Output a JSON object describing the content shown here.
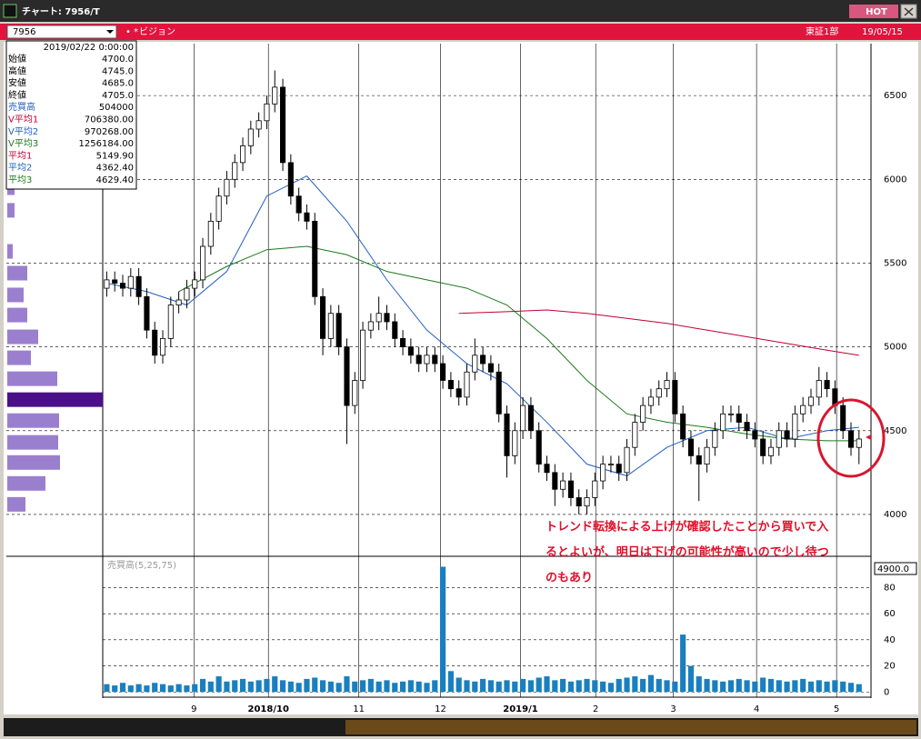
{
  "window": {
    "title": "チャート: 7956/T",
    "hot": "HOT",
    "code": "7956",
    "name": "ビジョン",
    "market": "東証1部",
    "date": "19/05/15"
  },
  "info_panel": {
    "timestamp": "2019/02/22 0:00:00",
    "rows": [
      {
        "label": "始値",
        "value": "4700.0",
        "color": "#000000"
      },
      {
        "label": "高値",
        "value": "4745.0",
        "color": "#000000"
      },
      {
        "label": "安値",
        "value": "4685.0",
        "color": "#000000"
      },
      {
        "label": "終値",
        "value": "4705.0",
        "color": "#000000"
      },
      {
        "label": "売買高",
        "value": "504000",
        "color": "#1f5fbf"
      },
      {
        "label": "V平均1",
        "value": "706380.00",
        "color": "#c00030"
      },
      {
        "label": "V平均2",
        "value": "970268.00",
        "color": "#1f5fbf"
      },
      {
        "label": "V平均3",
        "value": "1256184.00",
        "color": "#1a7a1a"
      },
      {
        "label": "平均1",
        "value": "5149.90",
        "color": "#c00030"
      },
      {
        "label": "平均2",
        "value": "4362.40",
        "color": "#1f5fbf"
      },
      {
        "label": "平均3",
        "value": "4629.40",
        "color": "#1a7a1a"
      }
    ]
  },
  "annotation": [
    "トレンド転換による上げが確認したことから買いで入",
    "るとよいが、明日は下げの可能性が高いので少し待つ",
    "のもあり"
  ],
  "chart_data": {
    "type": "candlestick",
    "xlim": [
      0,
      96
    ],
    "ylim": [
      3750,
      6810
    ],
    "yticks": [
      4000,
      4500,
      5000,
      5500,
      6000,
      6500
    ],
    "xticks": [
      {
        "value": 11.4,
        "label": "9"
      },
      {
        "value": 20.7,
        "label": "2018/10"
      },
      {
        "value": 32,
        "label": "11"
      },
      {
        "value": 42.2,
        "label": "12"
      },
      {
        "value": 52.2,
        "label": "2019/1"
      },
      {
        "value": 61.6,
        "label": "2"
      },
      {
        "value": 71.3,
        "label": "3"
      },
      {
        "value": 81.7,
        "label": "4"
      },
      {
        "value": 91.7,
        "label": "5"
      }
    ],
    "candles": [
      [
        5350,
        5450,
        5300,
        5400
      ],
      [
        5400,
        5450,
        5330,
        5380
      ],
      [
        5380,
        5430,
        5300,
        5350
      ],
      [
        5350,
        5470,
        5300,
        5420
      ],
      [
        5420,
        5470,
        5250,
        5300
      ],
      [
        5300,
        5350,
        5050,
        5100
      ],
      [
        5100,
        5150,
        4900,
        4950
      ],
      [
        4950,
        5100,
        4900,
        5050
      ],
      [
        5050,
        5300,
        5000,
        5250
      ],
      [
        5250,
        5330,
        5200,
        5280
      ],
      [
        5280,
        5400,
        5230,
        5350
      ],
      [
        5350,
        5450,
        5300,
        5400
      ],
      [
        5400,
        5650,
        5350,
        5600
      ],
      [
        5600,
        5800,
        5550,
        5750
      ],
      [
        5750,
        5950,
        5700,
        5900
      ],
      [
        5900,
        6050,
        5850,
        6000
      ],
      [
        6000,
        6150,
        5950,
        6100
      ],
      [
        6100,
        6250,
        6050,
        6200
      ],
      [
        6200,
        6350,
        6150,
        6300
      ],
      [
        6300,
        6400,
        6250,
        6350
      ],
      [
        6350,
        6500,
        6300,
        6450
      ],
      [
        6450,
        6650,
        6400,
        6550
      ],
      [
        6550,
        6600,
        6050,
        6100
      ],
      [
        6100,
        6150,
        5850,
        5900
      ],
      [
        5900,
        5950,
        5750,
        5800
      ],
      [
        5800,
        5850,
        5700,
        5750
      ],
      [
        5750,
        5800,
        5250,
        5300
      ],
      [
        5300,
        5350,
        4950,
        5050
      ],
      [
        5050,
        5250,
        5000,
        5200
      ],
      [
        5200,
        5250,
        4950,
        5000
      ],
      [
        5000,
        5050,
        4420,
        4650
      ],
      [
        4650,
        4850,
        4600,
        4800
      ],
      [
        4800,
        5150,
        4750,
        5100
      ],
      [
        5100,
        5200,
        5050,
        5150
      ],
      [
        5150,
        5300,
        5100,
        5200
      ],
      [
        5200,
        5250,
        5100,
        5150
      ],
      [
        5150,
        5200,
        5000,
        5050
      ],
      [
        5050,
        5100,
        4950,
        5000
      ],
      [
        5000,
        5050,
        4900,
        4950
      ],
      [
        4950,
        5000,
        4850,
        4900
      ],
      [
        4900,
        5000,
        4850,
        4950
      ],
      [
        4950,
        5000,
        4850,
        4900
      ],
      [
        4900,
        4950,
        4750,
        4800
      ],
      [
        4800,
        4850,
        4700,
        4750
      ],
      [
        4750,
        4800,
        4650,
        4700
      ],
      [
        4700,
        4900,
        4650,
        4850
      ],
      [
        4850,
        5050,
        4800,
        4950
      ],
      [
        4950,
        5000,
        4850,
        4900
      ],
      [
        4900,
        4950,
        4800,
        4850
      ],
      [
        4850,
        4900,
        4550,
        4600
      ],
      [
        4600,
        4650,
        4220,
        4350
      ],
      [
        4350,
        4550,
        4300,
        4500
      ],
      [
        4500,
        4700,
        4450,
        4650
      ],
      [
        4650,
        4700,
        4450,
        4500
      ],
      [
        4500,
        4550,
        4250,
        4300
      ],
      [
        4300,
        4350,
        4200,
        4250
      ],
      [
        4250,
        4300,
        4050,
        4150
      ],
      [
        4150,
        4250,
        4100,
        4200
      ],
      [
        4200,
        4250,
        4050,
        4100
      ],
      [
        4100,
        4150,
        4000,
        4050
      ],
      [
        4050,
        4150,
        4000,
        4100
      ],
      [
        4100,
        4250,
        4050,
        4200
      ],
      [
        4200,
        4350,
        4150,
        4300
      ],
      [
        4300,
        4350,
        4250,
        4300
      ],
      [
        4300,
        4350,
        4200,
        4250
      ],
      [
        4250,
        4450,
        4200,
        4400
      ],
      [
        4400,
        4600,
        4350,
        4550
      ],
      [
        4550,
        4700,
        4500,
        4650
      ],
      [
        4650,
        4750,
        4600,
        4700
      ],
      [
        4700,
        4800,
        4650,
        4750
      ],
      [
        4750,
        4850,
        4700,
        4800
      ],
      [
        4800,
        4850,
        4550,
        4600
      ],
      [
        4600,
        4650,
        4400,
        4450
      ],
      [
        4450,
        4500,
        4300,
        4350
      ],
      [
        4350,
        4400,
        4080,
        4300
      ],
      [
        4300,
        4450,
        4250,
        4400
      ],
      [
        4400,
        4550,
        4350,
        4500
      ],
      [
        4500,
        4650,
        4450,
        4600
      ],
      [
        4600,
        4650,
        4550,
        4600
      ],
      [
        4600,
        4650,
        4500,
        4550
      ],
      [
        4550,
        4600,
        4450,
        4500
      ],
      [
        4500,
        4550,
        4400,
        4450
      ],
      [
        4450,
        4500,
        4300,
        4350
      ],
      [
        4350,
        4450,
        4300,
        4400
      ],
      [
        4400,
        4550,
        4350,
        4500
      ],
      [
        4500,
        4550,
        4400,
        4450
      ],
      [
        4450,
        4650,
        4400,
        4600
      ],
      [
        4600,
        4700,
        4550,
        4650
      ],
      [
        4650,
        4750,
        4600,
        4700
      ],
      [
        4700,
        4880,
        4650,
        4800
      ],
      [
        4800,
        4850,
        4700,
        4750
      ],
      [
        4750,
        4800,
        4600,
        4650
      ],
      [
        4650,
        4700,
        4450,
        4500
      ],
      [
        4500,
        4550,
        4350,
        4400
      ],
      [
        4400,
        4500,
        4300,
        4450
      ]
    ],
    "averages": [
      {
        "color": "#1f5fbf",
        "x": [
          0,
          5,
          10,
          15,
          20,
          25,
          30,
          35,
          40,
          45,
          50,
          55,
          60,
          65,
          70,
          75,
          80,
          85,
          90,
          94
        ],
        "values": [
          5380,
          5330,
          5250,
          5450,
          5900,
          6020,
          5750,
          5400,
          5100,
          4900,
          4780,
          4550,
          4300,
          4230,
          4400,
          4500,
          4520,
          4450,
          4500,
          4520
        ]
      },
      {
        "color": "#1a7a1a",
        "x": [
          9,
          15,
          20,
          25,
          30,
          35,
          40,
          45,
          50,
          55,
          60,
          65,
          70,
          75,
          80,
          85,
          90,
          94
        ],
        "values": [
          5330,
          5480,
          5580,
          5600,
          5550,
          5450,
          5400,
          5350,
          5250,
          5050,
          4800,
          4600,
          4550,
          4520,
          4480,
          4450,
          4440,
          4440
        ]
      },
      {
        "color": "#c00030",
        "x": [
          44,
          50,
          55,
          60,
          65,
          70,
          75,
          80,
          85,
          90,
          94
        ],
        "values": [
          5200,
          5210,
          5220,
          5200,
          5170,
          5140,
          5100,
          5060,
          5020,
          4980,
          4950
        ]
      }
    ],
    "volume": {
      "label": "売買高(5,25,75)",
      "readout": "4900.0",
      "color": "#1a7fc0",
      "ylim": [
        -4,
        104
      ],
      "yticks": [
        0,
        20,
        40,
        60,
        80
      ],
      "values": [
        6,
        5,
        7,
        5,
        6,
        5,
        7,
        6,
        5,
        6,
        5,
        6,
        10,
        8,
        12,
        8,
        9,
        10,
        8,
        9,
        10,
        12,
        9,
        8,
        7,
        10,
        11,
        9,
        8,
        7,
        12,
        8,
        9,
        10,
        8,
        9,
        7,
        8,
        9,
        8,
        7,
        9,
        96,
        16,
        11,
        9,
        8,
        10,
        9,
        8,
        9,
        8,
        10,
        9,
        11,
        12,
        9,
        10,
        8,
        9,
        10,
        9,
        8,
        7,
        10,
        11,
        12,
        10,
        13,
        10,
        9,
        8,
        44,
        20,
        12,
        10,
        9,
        8,
        9,
        10,
        9,
        8,
        11,
        10,
        9,
        8,
        9,
        10,
        8,
        9,
        8,
        9,
        8,
        7,
        6
      ]
    },
    "price_volume": {
      "xlim": [
        0,
        105
      ],
      "color": "#9b7fcf",
      "highlight_color": "#4b0f8a",
      "prices": [
        5950,
        5815,
        5570,
        5440,
        5310,
        5190,
        5060,
        4935,
        4810,
        4685,
        4560,
        4430,
        4310,
        4185,
        4060
      ],
      "amounts": [
        8,
        8,
        6,
        22,
        18,
        22,
        34,
        26,
        55,
        105,
        57,
        56,
        58,
        42,
        20
      ]
    }
  }
}
